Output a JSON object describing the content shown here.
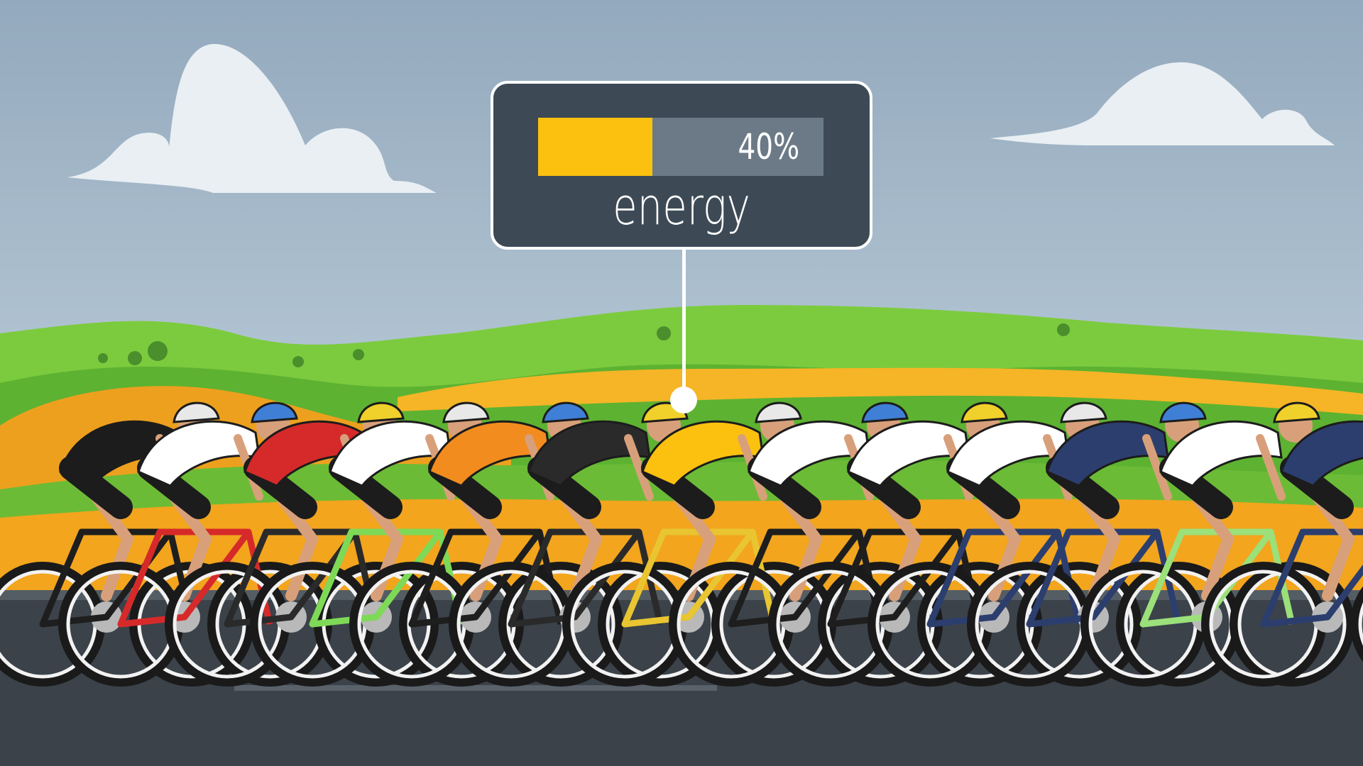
{
  "energy_widget": {
    "label": "energy",
    "percent_text": "40%",
    "level": 0.4
  },
  "colors": {
    "sky": "#9fb4c6",
    "card_background": "#3d4a56",
    "bar_fill": "#fcc10f",
    "bar_track": "#6c7a87",
    "road": "#3b4249",
    "hills_green": "#6fbf35",
    "fields_orange": "#f2a51d"
  },
  "scene": {
    "clouds": [
      "cloud-left",
      "cloud-right"
    ],
    "rider_jersey_colors": [
      "#1c1c1c",
      "#ffffff",
      "#d62a2a",
      "#ffffff",
      "#f28c1e",
      "#2a2a2a",
      "#fcc10f",
      "#ffffff",
      "#ffffff",
      "#ffffff",
      "#2c3e6e",
      "#ffffff",
      "#2c3e6e"
    ]
  }
}
